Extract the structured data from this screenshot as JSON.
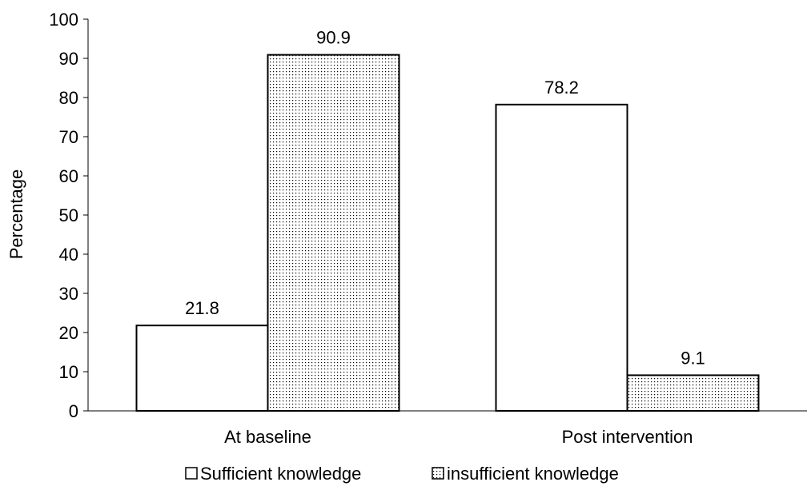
{
  "chart_data": {
    "type": "bar",
    "title": "",
    "xlabel": "",
    "ylabel": "Percentage",
    "ylim": [
      0,
      100
    ],
    "yticks": [
      0,
      10,
      20,
      30,
      40,
      50,
      60,
      70,
      80,
      90,
      100
    ],
    "categories": [
      "At baseline",
      "Post intervention"
    ],
    "series": [
      {
        "name": "Sufficient knowledge",
        "values": [
          21.8,
          78.2
        ],
        "fill": "solid-white"
      },
      {
        "name": "insufficient knowledge",
        "values": [
          90.9,
          9.1
        ],
        "fill": "dotted"
      }
    ],
    "data_labels": [
      "21.8",
      "90.9",
      "78.2",
      "9.1"
    ],
    "grid": false,
    "legend_position": "bottom"
  },
  "colors": {
    "bar_outline": "#000000",
    "bar_fill": "#ffffff",
    "dot_color": "#000000",
    "axis": "#000000"
  }
}
